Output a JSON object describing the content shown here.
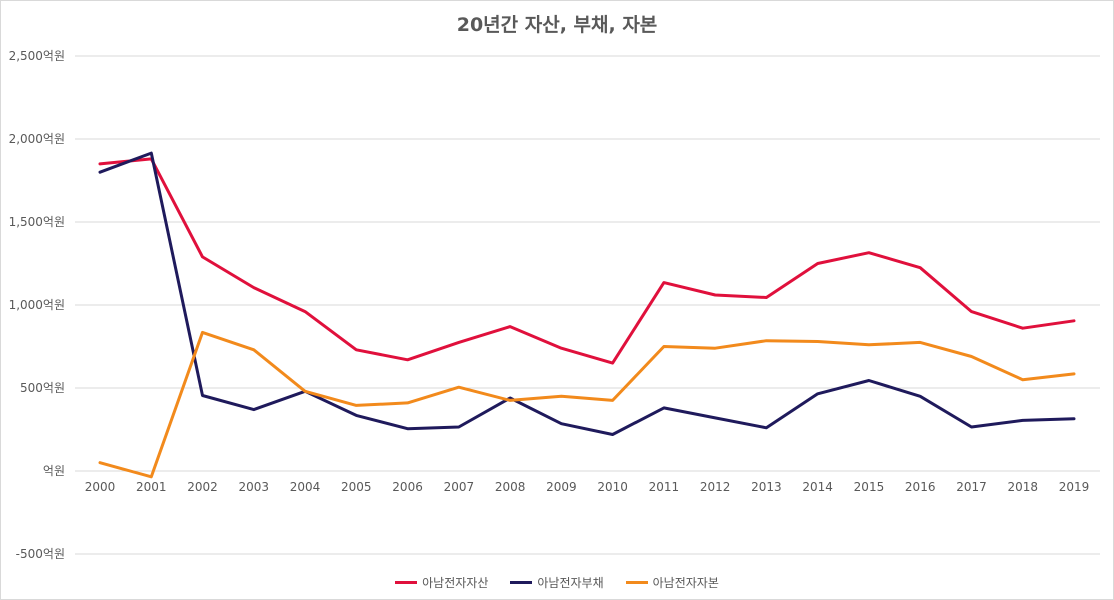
{
  "chart_data": {
    "type": "line",
    "title": "20년간 자산, 부채, 자본",
    "xlabel": "",
    "ylabel": "",
    "x": [
      "2000",
      "2001",
      "2002",
      "2003",
      "2004",
      "2005",
      "2006",
      "2007",
      "2008",
      "2009",
      "2010",
      "2011",
      "2012",
      "2013",
      "2014",
      "2015",
      "2016",
      "2017",
      "2018",
      "2019"
    ],
    "ylim": [
      -500,
      2500
    ],
    "yticks": [
      -500,
      0,
      500,
      1000,
      1500,
      2000,
      2500
    ],
    "ytick_labels": [
      "-500억원",
      "억원",
      "500억원",
      "1,000억원",
      "1,500억원",
      "2,000억원",
      "2,500억원"
    ],
    "grid": true,
    "legend_position": "bottom",
    "series": [
      {
        "name": "아남전자자산",
        "color": "#e0103c",
        "values": [
          1850,
          1880,
          1290,
          1105,
          960,
          730,
          670,
          775,
          870,
          740,
          650,
          1135,
          1060,
          1045,
          1250,
          1315,
          1225,
          960,
          860,
          905
        ]
      },
      {
        "name": "아남전자부채",
        "color": "#1f1a5c",
        "values": [
          1800,
          1915,
          455,
          370,
          480,
          335,
          255,
          265,
          440,
          285,
          220,
          380,
          320,
          260,
          465,
          545,
          450,
          265,
          305,
          315
        ]
      },
      {
        "name": "아남전자자본",
        "color": "#f28a1c",
        "values": [
          50,
          -35,
          835,
          730,
          480,
          395,
          410,
          505,
          425,
          450,
          425,
          750,
          740,
          785,
          780,
          760,
          775,
          690,
          550,
          585
        ]
      }
    ]
  }
}
